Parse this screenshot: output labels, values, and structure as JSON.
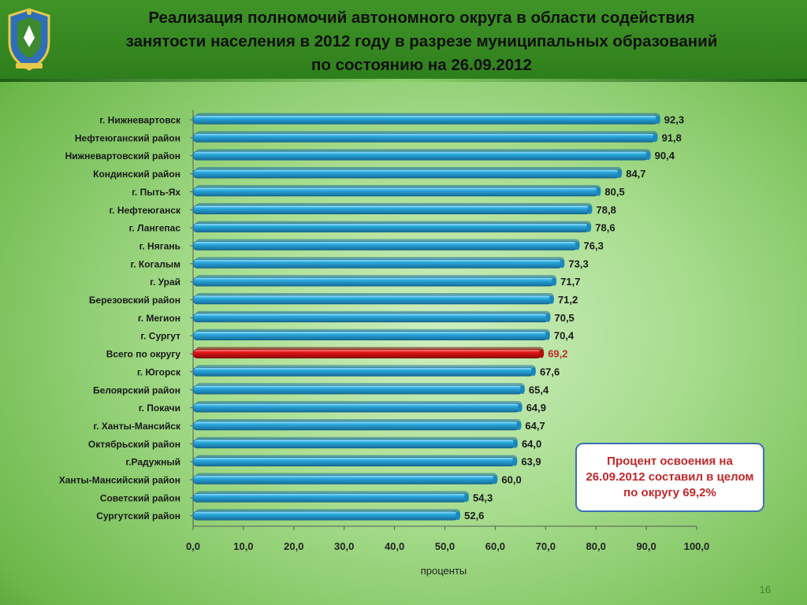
{
  "slide": {
    "title_lines": [
      "Реализация полномочий автономного округа в области содействия",
      "занятости населения в 2012 году в разрезе муниципальных образований",
      "по состоянию на 26.09.2012"
    ],
    "note": "Процент освоения на 26.09.2012 составил в целом по округу 69,2%",
    "page_number": "16",
    "colors": {
      "bar": "#29a8dc",
      "bar_highlight": "#e01414",
      "highlight_label": "#c0282a",
      "note_text": "#c0282a",
      "note_border": "#3f6fb4"
    }
  },
  "chart_data": {
    "type": "bar",
    "orientation": "horizontal",
    "title": "",
    "xlabel": "проценты",
    "ylabel": "",
    "xlim": [
      0,
      100
    ],
    "x_ticks": [
      "0,0",
      "10,0",
      "20,0",
      "30,0",
      "40,0",
      "50,0",
      "60,0",
      "70,0",
      "80,0",
      "90,0",
      "100,0"
    ],
    "grid": false,
    "highlight_category": "Всего по округу",
    "categories": [
      "г. Нижневартовск",
      "Нефтеюганский район",
      "Нижневартовский район",
      "Кондинский район",
      "г. Пыть-Ях",
      "г. Нефтеюганск",
      "г. Лангепас",
      "г. Нягань",
      "г. Когалым",
      "г. Урай",
      "Березовский район",
      "г. Мегион",
      "г. Сургут",
      "Всего по округу",
      "г. Югорск",
      "Белоярский  район",
      "г. Покачи",
      "г. Ханты-Мансийск",
      "Октябрьский район",
      "г.Радужный",
      "Ханты-Мансийский район",
      "Советский район",
      "Сургутский район"
    ],
    "values": [
      92.3,
      91.8,
      90.4,
      84.7,
      80.5,
      78.8,
      78.6,
      76.3,
      73.3,
      71.7,
      71.2,
      70.5,
      70.4,
      69.2,
      67.6,
      65.4,
      64.9,
      64.7,
      64.0,
      63.9,
      60.0,
      54.3,
      52.6
    ],
    "value_labels": [
      "92,3",
      "91,8",
      "90,4",
      "84,7",
      "80,5",
      "78,8",
      "78,6",
      "76,3",
      "73,3",
      "71,7",
      "71,2",
      "70,5",
      "70,4",
      "69,2",
      "67,6",
      "65,4",
      "64,9",
      "64,7",
      "64,0",
      "63,9",
      "60,0",
      "54,3",
      "52,6"
    ]
  }
}
